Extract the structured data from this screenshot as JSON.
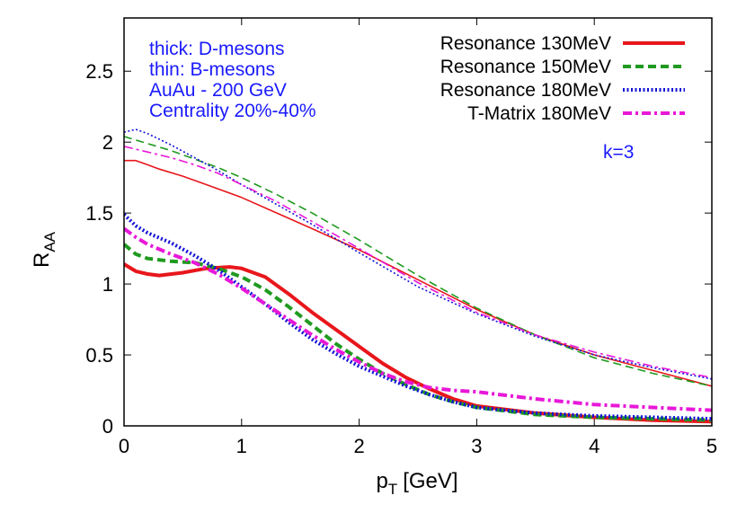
{
  "chart_data": {
    "type": "line",
    "xlabel": "p",
    "xlabel_sub": "T",
    "xlabel_unit": "[GeV]",
    "ylabel": "R",
    "ylabel_sub": "AA",
    "xlim": [
      0,
      5
    ],
    "ylim": [
      0,
      2.875
    ],
    "xticks": [
      0,
      1,
      2,
      3,
      4,
      5
    ],
    "yticks": [
      0,
      0.5,
      1,
      1.5,
      2,
      2.5
    ],
    "xtick_labels": [
      "0",
      "1",
      "2",
      "3",
      "4",
      "5"
    ],
    "ytick_labels": [
      "0",
      "0.5",
      "1",
      "1.5",
      "2",
      "2.5"
    ],
    "annotations": {
      "lines": [
        "thick: D-mesons",
        "thin: B-mesons",
        "AuAu - 200 GeV",
        "Centrality 20%-40%"
      ],
      "k_label": "k=3"
    },
    "legend_position": "top-right",
    "series": [
      {
        "name": "Resonance 130MeV",
        "color": "#e8161b",
        "dash": "solid",
        "d_meson": {
          "x": [
            0,
            0.1,
            0.2,
            0.3,
            0.5,
            0.7,
            0.9,
            1.0,
            1.2,
            1.4,
            1.6,
            1.8,
            2.0,
            2.2,
            2.4,
            2.6,
            2.8,
            3.0,
            3.5,
            4.0,
            4.5,
            5.0
          ],
          "y": [
            1.14,
            1.09,
            1.07,
            1.06,
            1.08,
            1.11,
            1.12,
            1.11,
            1.05,
            0.93,
            0.8,
            0.68,
            0.56,
            0.44,
            0.34,
            0.26,
            0.19,
            0.14,
            0.09,
            0.06,
            0.04,
            0.03
          ]
        },
        "b_meson": {
          "x": [
            0,
            0.1,
            0.2,
            0.3,
            0.5,
            0.7,
            1.0,
            1.3,
            1.6,
            2.0,
            2.5,
            3.0,
            3.5,
            4.0,
            4.5,
            5.0
          ],
          "y": [
            1.87,
            1.87,
            1.84,
            1.81,
            1.76,
            1.7,
            1.61,
            1.5,
            1.39,
            1.24,
            1.03,
            0.82,
            0.64,
            0.5,
            0.39,
            0.28
          ]
        }
      },
      {
        "name": "Resonance 150MeV",
        "color": "#1f9a1f",
        "dash": "dashed",
        "d_meson": {
          "x": [
            0,
            0.1,
            0.2,
            0.4,
            0.6,
            0.8,
            1.0,
            1.2,
            1.4,
            1.6,
            1.8,
            2.0,
            2.2,
            2.4,
            2.6,
            2.8,
            3.0,
            3.5,
            4.0,
            4.5,
            5.0
          ],
          "y": [
            1.28,
            1.21,
            1.18,
            1.16,
            1.15,
            1.11,
            1.05,
            0.96,
            0.84,
            0.71,
            0.58,
            0.47,
            0.37,
            0.29,
            0.22,
            0.17,
            0.13,
            0.08,
            0.06,
            0.05,
            0.04
          ]
        },
        "b_meson": {
          "x": [
            0,
            0.2,
            0.4,
            0.6,
            0.8,
            1.0,
            1.3,
            1.6,
            2.0,
            2.5,
            3.0,
            3.5,
            4.0,
            4.5,
            5.0
          ],
          "y": [
            2.04,
            1.99,
            1.94,
            1.88,
            1.82,
            1.75,
            1.63,
            1.5,
            1.31,
            1.06,
            0.83,
            0.64,
            0.48,
            0.37,
            0.28
          ]
        }
      },
      {
        "name": "Resonance 180MeV",
        "color": "#1212d8",
        "dash": "dotted",
        "d_meson": {
          "x": [
            0,
            0.1,
            0.2,
            0.4,
            0.6,
            0.8,
            1.0,
            1.2,
            1.4,
            1.6,
            1.8,
            2.0,
            2.2,
            2.4,
            2.6,
            2.8,
            3.0,
            3.5,
            4.0,
            4.5,
            5.0
          ],
          "y": [
            1.49,
            1.41,
            1.36,
            1.29,
            1.2,
            1.1,
            0.98,
            0.86,
            0.73,
            0.61,
            0.51,
            0.42,
            0.35,
            0.28,
            0.22,
            0.17,
            0.13,
            0.09,
            0.07,
            0.06,
            0.05
          ]
        },
        "b_meson": {
          "x": [
            0,
            0.1,
            0.2,
            0.4,
            0.6,
            0.8,
            1.0,
            1.3,
            1.6,
            2.0,
            2.5,
            3.0,
            3.5,
            4.0,
            4.5,
            5.0
          ],
          "y": [
            2.07,
            2.09,
            2.06,
            1.98,
            1.89,
            1.8,
            1.7,
            1.56,
            1.42,
            1.22,
            0.98,
            0.79,
            0.63,
            0.5,
            0.41,
            0.33
          ]
        }
      },
      {
        "name": "T-Matrix 180MeV",
        "color": "#e817d8",
        "dash": "dash-dot",
        "d_meson": {
          "x": [
            0,
            0.1,
            0.2,
            0.4,
            0.6,
            0.8,
            1.0,
            1.2,
            1.4,
            1.6,
            1.8,
            2.0,
            2.2,
            2.4,
            2.6,
            2.8,
            3.0,
            3.5,
            4.0,
            4.5,
            5.0
          ],
          "y": [
            1.39,
            1.33,
            1.28,
            1.21,
            1.15,
            1.07,
            0.97,
            0.86,
            0.75,
            0.64,
            0.54,
            0.45,
            0.37,
            0.31,
            0.27,
            0.25,
            0.24,
            0.19,
            0.15,
            0.13,
            0.11
          ]
        },
        "b_meson": {
          "x": [
            0,
            0.2,
            0.4,
            0.6,
            0.8,
            1.0,
            1.3,
            1.6,
            2.0,
            2.5,
            3.0,
            3.5,
            4.0,
            4.5,
            5.0
          ],
          "y": [
            1.97,
            1.93,
            1.89,
            1.84,
            1.78,
            1.7,
            1.58,
            1.44,
            1.25,
            1.01,
            0.8,
            0.64,
            0.52,
            0.42,
            0.34
          ]
        }
      }
    ]
  }
}
